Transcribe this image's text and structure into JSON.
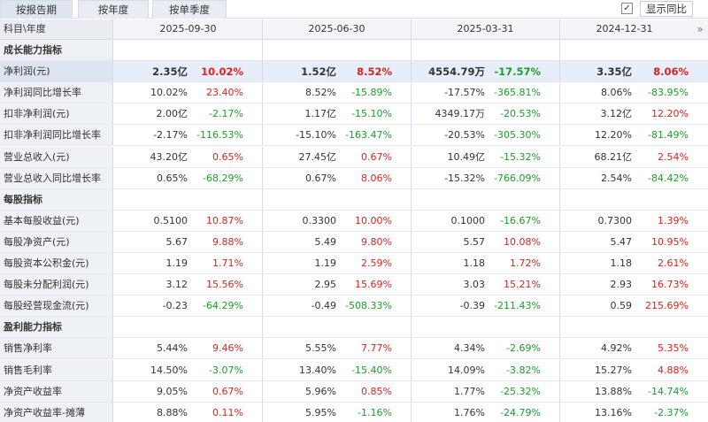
{
  "tabs": [
    {
      "label": "按报告期",
      "active": true
    },
    {
      "label": "按年度",
      "active": false
    },
    {
      "label": "按单季度",
      "active": false
    }
  ],
  "yoy_toggle": {
    "checked": true,
    "check_glyph": "✓",
    "label": "显示同比"
  },
  "header": {
    "corner_label": "科目\\年度",
    "dates": [
      "2025-09-30",
      "2025-06-30",
      "2025-03-31",
      "2024-12-31"
    ],
    "next_glyph": "»"
  },
  "rows": [
    {
      "type": "section",
      "label": "成长能力指标"
    },
    {
      "type": "data",
      "label": "净利润(元)",
      "highlight": true,
      "cells": [
        {
          "v": "2.35亿",
          "p": "10.02%",
          "dir": "up"
        },
        {
          "v": "1.52亿",
          "p": "8.52%",
          "dir": "up"
        },
        {
          "v": "4554.79万",
          "p": "-17.57%",
          "dir": "down"
        },
        {
          "v": "3.35亿",
          "p": "8.06%",
          "dir": "up"
        }
      ]
    },
    {
      "type": "data",
      "label": "净利润同比增长率",
      "cells": [
        {
          "v": "10.02%",
          "p": "23.40%",
          "dir": "up"
        },
        {
          "v": "8.52%",
          "p": "-15.89%",
          "dir": "down"
        },
        {
          "v": "-17.57%",
          "p": "-365.81%",
          "dir": "down"
        },
        {
          "v": "8.06%",
          "p": "-83.95%",
          "dir": "down"
        }
      ]
    },
    {
      "type": "data",
      "label": "扣非净利润(元)",
      "cells": [
        {
          "v": "2.00亿",
          "p": "-2.17%",
          "dir": "down"
        },
        {
          "v": "1.17亿",
          "p": "-15.10%",
          "dir": "down"
        },
        {
          "v": "4349.17万",
          "p": "-20.53%",
          "dir": "down"
        },
        {
          "v": "3.12亿",
          "p": "12.20%",
          "dir": "up"
        }
      ]
    },
    {
      "type": "data",
      "label": "扣非净利润同比增长率",
      "cells": [
        {
          "v": "-2.17%",
          "p": "-116.53%",
          "dir": "down"
        },
        {
          "v": "-15.10%",
          "p": "-163.47%",
          "dir": "down"
        },
        {
          "v": "-20.53%",
          "p": "-305.30%",
          "dir": "down"
        },
        {
          "v": "12.20%",
          "p": "-81.49%",
          "dir": "down"
        }
      ]
    },
    {
      "type": "data",
      "label": "营业总收入(元)",
      "cells": [
        {
          "v": "43.20亿",
          "p": "0.65%",
          "dir": "up"
        },
        {
          "v": "27.45亿",
          "p": "0.67%",
          "dir": "up"
        },
        {
          "v": "10.49亿",
          "p": "-15.32%",
          "dir": "down"
        },
        {
          "v": "68.21亿",
          "p": "2.54%",
          "dir": "up"
        }
      ]
    },
    {
      "type": "data",
      "label": "营业总收入同比增长率",
      "cells": [
        {
          "v": "0.65%",
          "p": "-68.29%",
          "dir": "down"
        },
        {
          "v": "0.67%",
          "p": "8.06%",
          "dir": "up"
        },
        {
          "v": "-15.32%",
          "p": "-766.09%",
          "dir": "down"
        },
        {
          "v": "2.54%",
          "p": "-84.42%",
          "dir": "down"
        }
      ]
    },
    {
      "type": "section",
      "label": "每股指标"
    },
    {
      "type": "data",
      "label": "基本每股收益(元)",
      "cells": [
        {
          "v": "0.5100",
          "p": "10.87%",
          "dir": "up"
        },
        {
          "v": "0.3300",
          "p": "10.00%",
          "dir": "up"
        },
        {
          "v": "0.1000",
          "p": "-16.67%",
          "dir": "down"
        },
        {
          "v": "0.7300",
          "p": "1.39%",
          "dir": "up"
        }
      ]
    },
    {
      "type": "data",
      "label": "每股净资产(元)",
      "cells": [
        {
          "v": "5.67",
          "p": "9.88%",
          "dir": "up"
        },
        {
          "v": "5.49",
          "p": "9.80%",
          "dir": "up"
        },
        {
          "v": "5.57",
          "p": "10.08%",
          "dir": "up"
        },
        {
          "v": "5.47",
          "p": "10.95%",
          "dir": "up"
        }
      ]
    },
    {
      "type": "data",
      "label": "每股资本公积金(元)",
      "cells": [
        {
          "v": "1.19",
          "p": "1.71%",
          "dir": "up"
        },
        {
          "v": "1.19",
          "p": "2.59%",
          "dir": "up"
        },
        {
          "v": "1.18",
          "p": "1.72%",
          "dir": "up"
        },
        {
          "v": "1.18",
          "p": "2.61%",
          "dir": "up"
        }
      ]
    },
    {
      "type": "data",
      "label": "每股未分配利润(元)",
      "cells": [
        {
          "v": "3.12",
          "p": "15.56%",
          "dir": "up"
        },
        {
          "v": "2.95",
          "p": "15.69%",
          "dir": "up"
        },
        {
          "v": "3.03",
          "p": "15.21%",
          "dir": "up"
        },
        {
          "v": "2.93",
          "p": "16.73%",
          "dir": "up"
        }
      ]
    },
    {
      "type": "data",
      "label": "每股经营现金流(元)",
      "cells": [
        {
          "v": "-0.23",
          "p": "-64.29%",
          "dir": "down"
        },
        {
          "v": "-0.49",
          "p": "-508.33%",
          "dir": "down"
        },
        {
          "v": "-0.39",
          "p": "-211.43%",
          "dir": "down"
        },
        {
          "v": "0.59",
          "p": "215.69%",
          "dir": "up"
        }
      ]
    },
    {
      "type": "section",
      "label": "盈利能力指标"
    },
    {
      "type": "data",
      "label": "销售净利率",
      "cells": [
        {
          "v": "5.44%",
          "p": "9.46%",
          "dir": "up"
        },
        {
          "v": "5.55%",
          "p": "7.77%",
          "dir": "up"
        },
        {
          "v": "4.34%",
          "p": "-2.69%",
          "dir": "down"
        },
        {
          "v": "4.92%",
          "p": "5.35%",
          "dir": "up"
        }
      ]
    },
    {
      "type": "data",
      "label": "销售毛利率",
      "cells": [
        {
          "v": "14.50%",
          "p": "-3.07%",
          "dir": "down"
        },
        {
          "v": "13.40%",
          "p": "-15.40%",
          "dir": "down"
        },
        {
          "v": "14.09%",
          "p": "-3.82%",
          "dir": "down"
        },
        {
          "v": "15.27%",
          "p": "4.88%",
          "dir": "up"
        }
      ]
    },
    {
      "type": "data",
      "label": "净资产收益率",
      "cells": [
        {
          "v": "9.05%",
          "p": "0.67%",
          "dir": "up"
        },
        {
          "v": "5.96%",
          "p": "0.85%",
          "dir": "up"
        },
        {
          "v": "1.77%",
          "p": "-25.32%",
          "dir": "down"
        },
        {
          "v": "13.88%",
          "p": "-14.74%",
          "dir": "down"
        }
      ]
    },
    {
      "type": "data",
      "label": "净资产收益率-摊薄",
      "cells": [
        {
          "v": "8.88%",
          "p": "0.11%",
          "dir": "up"
        },
        {
          "v": "5.95%",
          "p": "-1.16%",
          "dir": "down"
        },
        {
          "v": "1.76%",
          "p": "-24.79%",
          "dir": "down"
        },
        {
          "v": "13.16%",
          "p": "-2.37%",
          "dir": "down"
        }
      ]
    }
  ]
}
